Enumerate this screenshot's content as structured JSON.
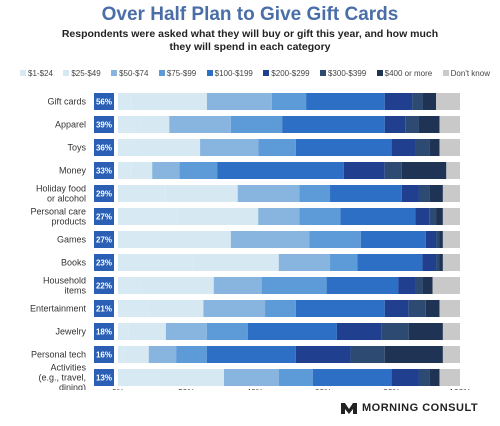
{
  "title": "Over Half Plan to Give Gift Cards",
  "subtitle": "Respondents were asked what they will buy or gift this year, and how much they will spend in each category",
  "brand": {
    "name": "MORNING CONSULT",
    "icon": "morning-consult-logo-icon"
  },
  "colors": {
    "segments": [
      "#d7eaf3",
      "#d6e8f1",
      "#87b5df",
      "#5d9ad8",
      "#2c6fc4",
      "#203f8f",
      "#2d4a73",
      "#1f3354",
      "#c9c9c9"
    ],
    "bar": "#2a5fb5",
    "label_text": "#ffffff",
    "axis_text": "#333333",
    "title": "#4a6ea8"
  },
  "chart_data": {
    "type": "bar",
    "stacked": true,
    "orientation": "horizontal",
    "title": "Over Half Plan to Give Gift Cards",
    "subtitle": "Respondents were asked what they will buy or gift this year, and how much they will spend in each category",
    "legend": {
      "position": "top",
      "labels": [
        "$1-$24",
        "$25-$49",
        "$50-$74",
        "$75-$99",
        "$100-$199",
        "$200-$299",
        "$300-$399",
        "$400 or more",
        "Don't know"
      ]
    },
    "xlim": [
      0,
      100
    ],
    "xticks": [
      "0%",
      "20%",
      "40%",
      "60%",
      "80%",
      "100%"
    ],
    "grid": false,
    "categories": [
      "Gift cards",
      "Apparel",
      "Toys",
      "Money",
      "Holiday food or alcohol",
      "Personal care products",
      "Games",
      "Books",
      "Household items",
      "Entertainment",
      "Jewelry",
      "Personal tech",
      "Activities (e.g., travel, dining)"
    ],
    "share_labels": [
      "56%",
      "39%",
      "36%",
      "33%",
      "29%",
      "27%",
      "27%",
      "23%",
      "22%",
      "21%",
      "18%",
      "16%",
      "13%"
    ],
    "series": [
      {
        "values": [
          4,
          7,
          6,
          4,
          14,
          17,
          12,
          22,
          7,
          9,
          3,
          2,
          12
        ]
      },
      {
        "values": [
          22,
          8,
          18,
          6,
          21,
          24,
          21,
          25,
          21,
          16,
          11,
          7,
          19
        ]
      },
      {
        "values": [
          19,
          18,
          17,
          8,
          18,
          12,
          23,
          15,
          14,
          18,
          12,
          8,
          16
        ]
      },
      {
        "values": [
          10,
          15,
          11,
          11,
          9,
          12,
          15,
          8,
          19,
          9,
          12,
          9,
          10
        ]
      },
      {
        "values": [
          23,
          30,
          28,
          37,
          21,
          22,
          19,
          19,
          21,
          26,
          26,
          26,
          23
        ]
      },
      {
        "values": [
          8,
          6,
          7,
          12,
          5,
          4,
          3,
          4,
          5,
          7,
          13,
          16,
          8
        ]
      },
      {
        "values": [
          3,
          4,
          4,
          5,
          3,
          2,
          1,
          1,
          2,
          5,
          8,
          10,
          3
        ]
      },
      {
        "values": [
          4,
          6,
          3,
          13,
          4,
          2,
          1,
          1,
          3,
          4,
          10,
          17,
          3
        ]
      },
      {
        "values": [
          7,
          6,
          6,
          4,
          5,
          5,
          5,
          5,
          8,
          6,
          5,
          5,
          6
        ]
      }
    ]
  }
}
